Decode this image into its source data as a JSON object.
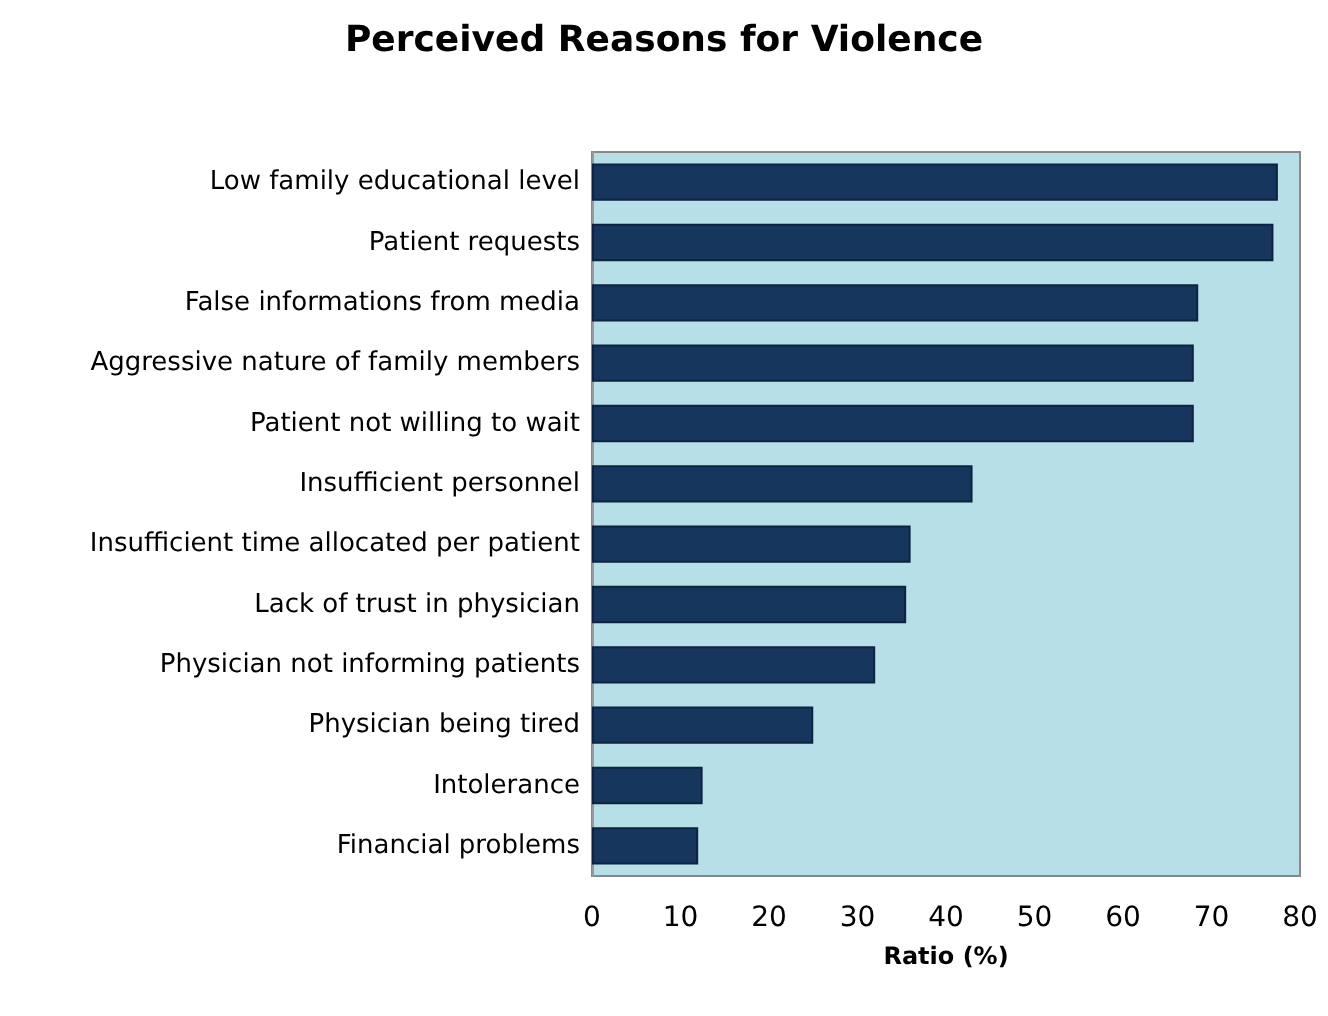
{
  "chart_data": {
    "type": "bar",
    "orientation": "horizontal",
    "title": "Perceived Reasons for Violence",
    "xlabel": "Ratio (%)",
    "categories": [
      "Low family educational level",
      "Patient requests",
      "False informations from media",
      "Aggressive nature of family members",
      "Patient not willing to wait",
      "Insufficient personnel",
      "Insufficient time allocated per patient",
      "Lack of trust in physician",
      "Physician not informing patients",
      "Physician being tired",
      "Intolerance",
      "Financial problems"
    ],
    "values": [
      77.5,
      77,
      68.5,
      68,
      68,
      43,
      36,
      35.5,
      32,
      25,
      12.5,
      12
    ],
    "color": "#17365d",
    "xlim": [
      0,
      80
    ],
    "xticks": [
      0,
      10,
      20,
      30,
      40,
      50,
      60,
      70,
      80
    ],
    "grid": false
  }
}
